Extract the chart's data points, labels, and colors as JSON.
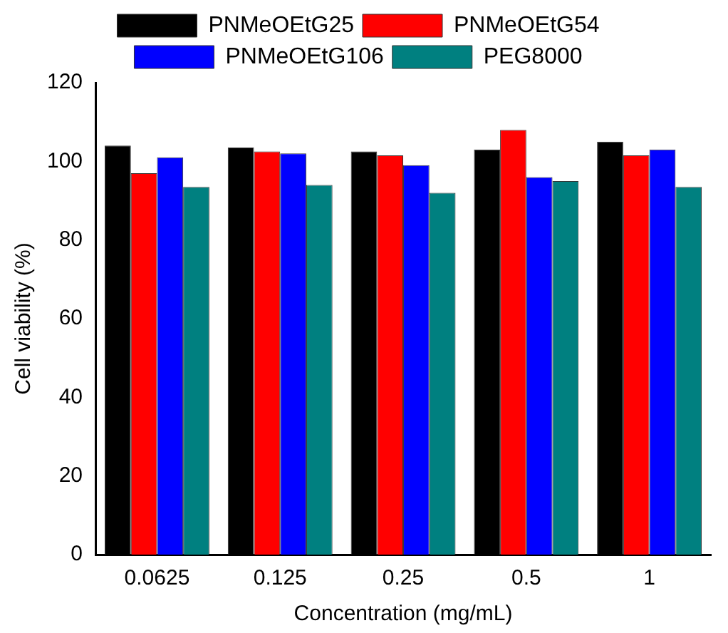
{
  "chart_data": {
    "type": "bar",
    "xlabel": "Concentration (mg/mL)",
    "ylabel": "Cell viability (%)",
    "categories": [
      "0.0625",
      "0.125",
      "0.25",
      "0.5",
      "1"
    ],
    "series": [
      {
        "name": "PNMeOEtG25",
        "color": "#000000",
        "values": [
          104,
          103.5,
          102.5,
          103,
          105
        ]
      },
      {
        "name": "PNMeOEtG54",
        "color": "#ff0000",
        "values": [
          97,
          102.5,
          101.5,
          108,
          101.5
        ]
      },
      {
        "name": "PNMeOEtG106",
        "color": "#0000ff",
        "values": [
          101,
          102,
          99,
          96,
          103
        ]
      },
      {
        "name": "PEG8000",
        "color": "#008080",
        "values": [
          93.5,
          94,
          92,
          95,
          93.5
        ]
      }
    ],
    "ylim": [
      0,
      120
    ],
    "yticks": [
      0,
      20,
      40,
      60,
      80,
      100,
      120
    ],
    "grid": false,
    "legend": "top"
  }
}
